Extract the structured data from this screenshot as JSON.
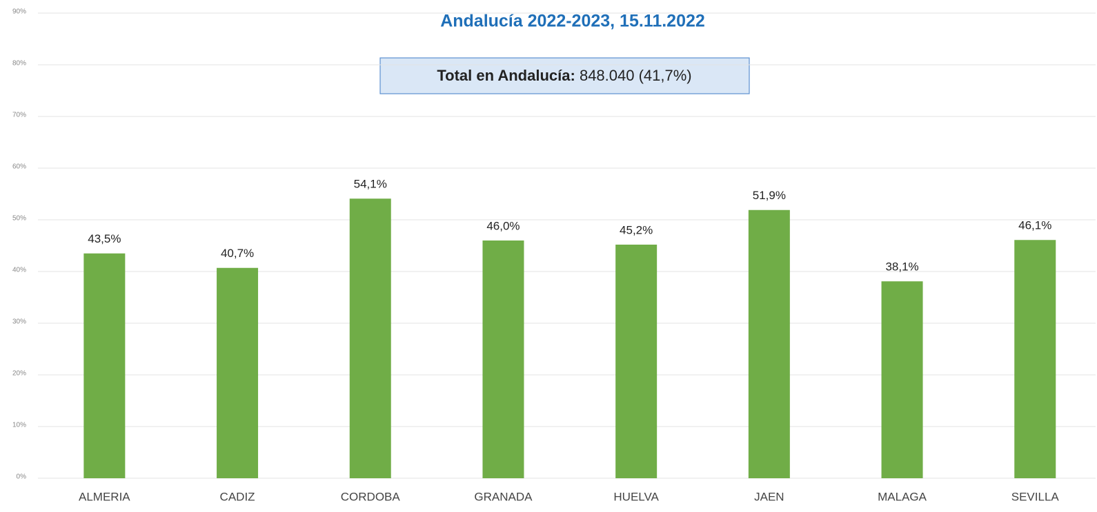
{
  "chart_data": {
    "type": "bar",
    "title": "Andalucía 2022-2023, 15.11.2022",
    "annotation": {
      "label": "Total en Andalucía:",
      "text": "848.040 (41,7%)"
    },
    "categories": [
      "ALMERIA",
      "CADIZ",
      "CORDOBA",
      "GRANADA",
      "HUELVA",
      "JAEN",
      "MALAGA",
      "SEVILLA"
    ],
    "values": [
      43.5,
      40.7,
      54.1,
      46.0,
      45.2,
      51.9,
      38.1,
      46.1
    ],
    "value_labels": [
      "43,5%",
      "40,7%",
      "54,1%",
      "46,0%",
      "45,2%",
      "51,9%",
      "38,1%",
      "46,1%"
    ],
    "color": "#70ad47",
    "ylim": [
      0,
      90
    ],
    "yticks": [
      {
        "value": 0,
        "label": "0%"
      },
      {
        "value": 10,
        "label": "10%"
      },
      {
        "value": 20,
        "label": "20%"
      },
      {
        "value": 30,
        "label": "30%"
      },
      {
        "value": 40,
        "label": "40%"
      },
      {
        "value": 50,
        "label": "50%"
      },
      {
        "value": 60,
        "label": "60%"
      },
      {
        "value": 70,
        "label": "70%"
      },
      {
        "value": 80,
        "label": "80%"
      },
      {
        "value": 90,
        "label": "90%"
      }
    ],
    "grid": true
  }
}
